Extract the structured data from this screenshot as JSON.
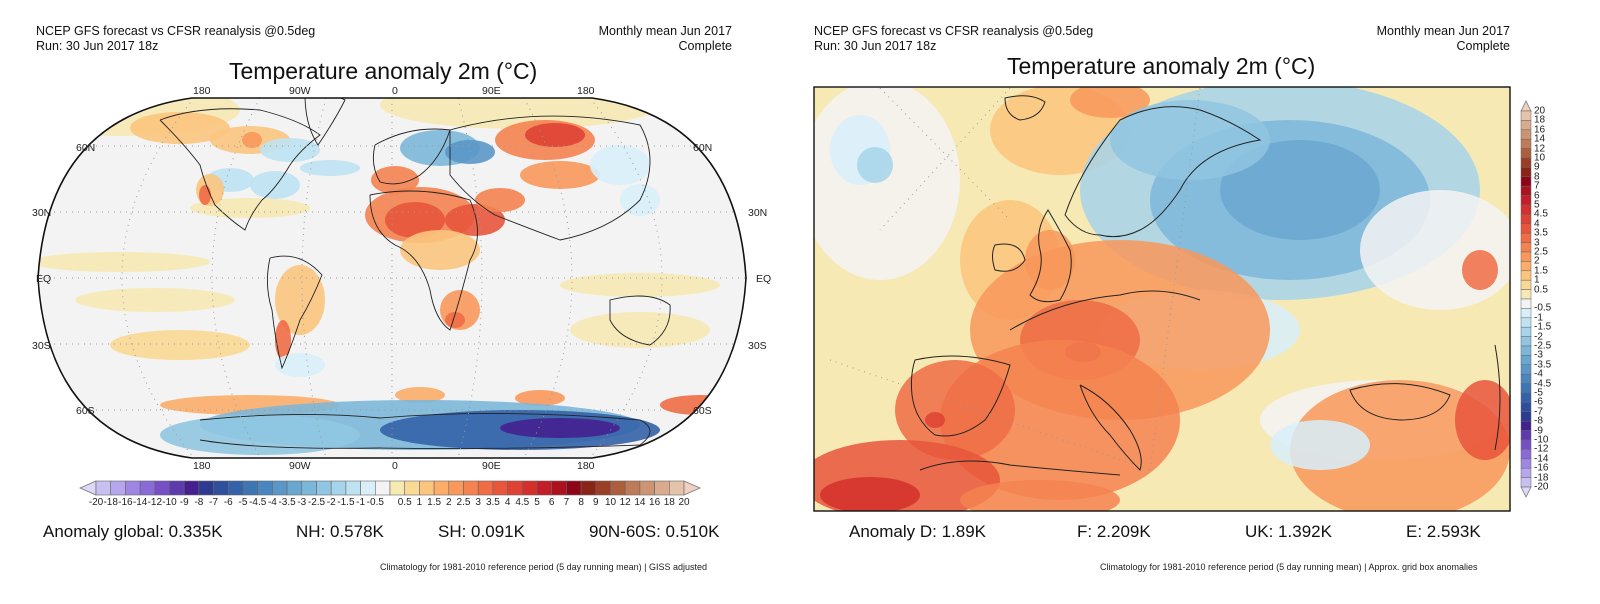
{
  "left_panel": {
    "header_left": [
      "NCEP GFS forecast vs CFSR reanalysis @0.5deg",
      "Run: 30 Jun 2017 18z"
    ],
    "header_right": [
      "Monthly mean Jun 2017",
      "Complete"
    ],
    "title": "Temperature anomaly 2m (°C)",
    "lon_labels_top": [
      "180",
      "90W",
      "0",
      "90E",
      "180"
    ],
    "lon_labels_bottom": [
      "180",
      "90W",
      "0",
      "90E",
      "180"
    ],
    "lat_labels_left": [
      "60N",
      "30N",
      "EQ",
      "30S",
      "60S"
    ],
    "lat_labels_right": [
      "60N",
      "30N",
      "EQ",
      "30S",
      "60S"
    ],
    "stats": {
      "global": "Anomaly global: 0.335K",
      "nh": "NH: 0.578K",
      "sh": "SH: 0.091K",
      "band": "90N-60S: 0.510K"
    },
    "footnote": "Climatology for 1981-2010 reference period (5 day running mean) | GISS adjusted"
  },
  "right_panel": {
    "header_left": [
      "NCEP GFS forecast vs CFSR reanalysis @0.5deg",
      "Run: 30 Jun 2017 18z"
    ],
    "header_right": [
      "Monthly mean Jun 2017",
      "Complete"
    ],
    "title": "Temperature anomaly 2m (°C)",
    "stats": {
      "d": "Anomaly D: 1.89K",
      "f": "F: 2.209K",
      "uk": "UK: 1.392K",
      "e": "E: 2.593K"
    },
    "footnote": "Climatology for 1981-2010 reference period (5 day running mean) | Approx. grid box anomalies"
  },
  "colorbar": {
    "labels": [
      "-20",
      "-18",
      "-16",
      "-14",
      "-12",
      "-10",
      "-9",
      "-8",
      "-7",
      "-6",
      "-5",
      "-4.5",
      "-4",
      "-3.5",
      "-3",
      "-2.5",
      "-2",
      "-1.5",
      "-1",
      "-0.5",
      "0.5",
      "1",
      "1.5",
      "2",
      "2.5",
      "3",
      "3.5",
      "4",
      "4.5",
      "5",
      "6",
      "7",
      "8",
      "9",
      "10",
      "12",
      "14",
      "16",
      "18",
      "20"
    ],
    "colors": [
      "#c9c0f2",
      "#b5a6ee",
      "#9f86e2",
      "#8a6ad6",
      "#7450c4",
      "#5d3aae",
      "#44208f",
      "#2c3a8f",
      "#2e4f9d",
      "#3462a8",
      "#3e75b3",
      "#4a86bd",
      "#5a97c8",
      "#6aa7d0",
      "#7cb7d9",
      "#90c6e1",
      "#a6d4ea",
      "#bee2f2",
      "#d8effa",
      "#f3f3f3",
      "#f7e9b4",
      "#fad994",
      "#fbc57e",
      "#fbad69",
      "#f8985b",
      "#f48350",
      "#ef6c45",
      "#e8553b",
      "#df4134",
      "#d42f2c",
      "#c31d27",
      "#ac1120",
      "#8e0518",
      "#8a2418",
      "#9b3e27",
      "#ad5e3d",
      "#be7b57",
      "#cc9473",
      "#d8ab8f",
      "#e5c2aa"
    ],
    "under_color": "#ded8f8",
    "over_color": "#f0d0be"
  },
  "map_colors": {
    "ocean_neutral": "#f3f3f3",
    "frame": "#111111",
    "grid": "#9a9a9a"
  },
  "chart_data": [
    {
      "type": "heatmap",
      "title": "Temperature anomaly 2m (°C)",
      "subtitle": "NCEP GFS forecast vs CFSR reanalysis @0.5deg — Monthly mean Jun 2017 (Complete), Run: 30 Jun 2017 18z",
      "region": "Global (Robinson-like projection)",
      "x_ticks": [
        "180",
        "90W",
        "0",
        "90E",
        "180"
      ],
      "y_ticks": [
        "60N",
        "30N",
        "EQ",
        "30S",
        "60S"
      ],
      "color_scale": [
        "-20",
        "-18",
        "-16",
        "-14",
        "-12",
        "-10",
        "-9",
        "-8",
        "-7",
        "-6",
        "-5",
        "-4.5",
        "-4",
        "-3.5",
        "-3",
        "-2.5",
        "-2",
        "-1.5",
        "-1",
        "-0.5",
        "0.5",
        "1",
        "1.5",
        "2",
        "2.5",
        "3",
        "3.5",
        "4",
        "4.5",
        "5",
        "6",
        "7",
        "8",
        "9",
        "10",
        "12",
        "14",
        "16",
        "18",
        "20"
      ],
      "legend": "bottom (horizontal colorbar)",
      "summary_values": {
        "global_K": 0.335,
        "NH_K": 0.578,
        "SH_K": 0.091,
        "90N-60S_K": 0.51
      }
    },
    {
      "type": "heatmap",
      "title": "Temperature anomaly 2m (°C)",
      "subtitle": "NCEP GFS forecast vs CFSR reanalysis @0.5deg — Monthly mean Jun 2017 (Complete), Run: 30 Jun 2017 18z",
      "region": "Europe",
      "color_scale": [
        "-20",
        "-18",
        "-16",
        "-14",
        "-12",
        "-10",
        "-9",
        "-8",
        "-7",
        "-6",
        "-5",
        "-4.5",
        "-4",
        "-3.5",
        "-3",
        "-2.5",
        "-2",
        "-1.5",
        "-1",
        "-0.5",
        "0.5",
        "1",
        "1.5",
        "2",
        "2.5",
        "3",
        "3.5",
        "4",
        "4.5",
        "5",
        "6",
        "7",
        "8",
        "9",
        "10",
        "12",
        "14",
        "16",
        "18",
        "20"
      ],
      "legend": "right (vertical colorbar)",
      "summary_values": {
        "D_K": 1.89,
        "F_K": 2.209,
        "UK_K": 1.392,
        "E_K": 2.593
      }
    }
  ]
}
